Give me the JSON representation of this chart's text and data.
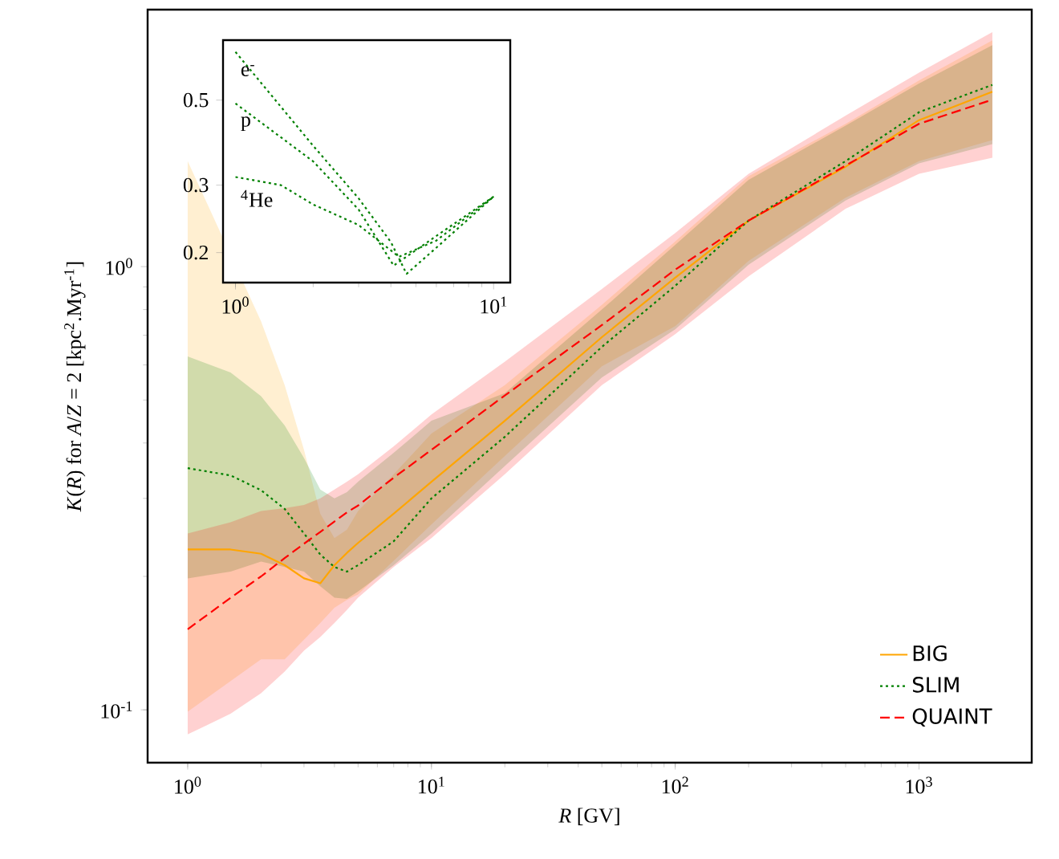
{
  "chart_data": [
    {
      "type": "line",
      "xlabel": "*R* [GV]",
      "ylabel": "*K*(*R*) for *A*/*Z* = 2 [kpc$^{2}$.Myr$^{-1}$]",
      "log": "xy",
      "legend": "bottom right",
      "xlim": [
        0.685,
        2900
      ],
      "ylim": [
        0.076,
        3.8
      ],
      "xticks": [
        {
          "value": 1,
          "label": "10$^{0}$"
        },
        {
          "value": 10,
          "label": "10$^{1}$"
        },
        {
          "value": 100,
          "label": "10$^{2}$"
        },
        {
          "value": 1000,
          "label": "10$^{3}$"
        }
      ],
      "yticks": [
        {
          "value": 0.1,
          "label": "10$^{-1}$"
        },
        {
          "value": 1,
          "label": "10$^{0}$"
        }
      ],
      "x": [
        1,
        1.5,
        2,
        2.5,
        3,
        3.5,
        4,
        4.5,
        5,
        7,
        10,
        20,
        50,
        100,
        200,
        500,
        1000,
        2000
      ],
      "series": [
        {
          "name": "BIG",
          "color": "#ffa500",
          "line_style": "solid",
          "values": [
            0.23,
            0.23,
            0.225,
            0.212,
            0.198,
            0.193,
            0.212,
            0.226,
            0.238,
            0.277,
            0.327,
            0.449,
            0.693,
            0.944,
            1.27,
            1.68,
            2.14,
            2.48
          ],
          "lower": [
            0.099,
            null,
            0.13,
            0.13,
            0.144,
            0.157,
            0.17,
            0.177,
            0.182,
            0.217,
            0.262,
            0.374,
            0.596,
            0.734,
            1.03,
            1.43,
            1.73,
            1.93
          ],
          "upper": [
            1.73,
            null,
            0.753,
            0.54,
            0.386,
            0.277,
            0.244,
            0.255,
            0.281,
            0.34,
            0.42,
            0.54,
            0.82,
            1.14,
            1.6,
            2.1,
            2.63,
            3.24
          ]
        },
        {
          "name": "SLIM",
          "color": "#008000",
          "line_style": "dotted",
          "values": [
            0.351,
            0.338,
            0.313,
            0.284,
            0.25,
            0.224,
            0.21,
            0.205,
            0.212,
            0.24,
            0.3,
            0.413,
            0.659,
            0.905,
            1.27,
            1.73,
            2.23,
            2.57
          ],
          "lower": [
            0.198,
            0.205,
            0.216,
            0.21,
            0.205,
            0.19,
            0.179,
            0.178,
            0.185,
            0.212,
            0.25,
            0.355,
            0.562,
            0.722,
            1.01,
            1.41,
            1.71,
            1.89
          ],
          "upper": [
            0.627,
            0.577,
            0.51,
            0.438,
            0.37,
            0.314,
            0.3,
            0.31,
            0.327,
            0.38,
            0.449,
            0.518,
            0.8,
            1.12,
            1.57,
            2.08,
            2.59,
            3.16
          ]
        },
        {
          "name": "QUAINT",
          "color": "#ff0000",
          "line_style": "dashed",
          "values": [
            0.152,
            0.179,
            0.2,
            0.22,
            0.237,
            0.252,
            0.266,
            0.279,
            0.289,
            0.334,
            0.386,
            0.512,
            0.738,
            0.984,
            1.27,
            1.69,
            2.1,
            2.38
          ],
          "lower": [
            0.088,
            0.098,
            0.109,
            0.122,
            0.136,
            0.146,
            0.157,
            0.168,
            0.179,
            0.21,
            0.244,
            0.34,
            0.54,
            0.704,
            0.95,
            1.35,
            1.62,
            1.76
          ],
          "upper": [
            0.25,
            0.265,
            0.281,
            0.285,
            0.29,
            0.3,
            0.314,
            0.327,
            0.34,
            0.393,
            0.464,
            0.61,
            0.89,
            1.19,
            1.62,
            2.19,
            2.74,
            3.38
          ]
        }
      ]
    },
    {
      "type": "line",
      "log": "xy",
      "xlim": [
        0.895,
        11.6
      ],
      "ylim": [
        0.167,
        0.717
      ],
      "xticks": [
        {
          "value": 1,
          "label": "10$^{0}$"
        },
        {
          "value": 10,
          "label": "10$^{1}$"
        }
      ],
      "yticks": [
        0.2,
        0.3,
        0.5
      ],
      "series": [
        {
          "name": "e$^{-}$",
          "color": "#008000",
          "line_style": "dotted",
          "x": [
            1,
            2,
            3,
            4,
            4.6,
            6,
            10
          ],
          "values": [
            0.668,
            0.38,
            0.277,
            0.213,
            0.176,
            0.206,
            0.28
          ]
        },
        {
          "name": "p",
          "color": "#008000",
          "line_style": "dotted",
          "x": [
            1,
            2,
            3,
            4.1,
            6,
            10
          ],
          "values": [
            0.49,
            0.346,
            0.259,
            0.185,
            0.221,
            0.28
          ]
        },
        {
          "name": "$^{4}$He",
          "color": "#008000",
          "line_style": "dotted",
          "x": [
            1,
            1.5,
            2,
            3,
            4.3,
            6,
            10
          ],
          "values": [
            0.315,
            0.3,
            0.267,
            0.236,
            0.195,
            0.215,
            0.28
          ]
        }
      ]
    }
  ]
}
